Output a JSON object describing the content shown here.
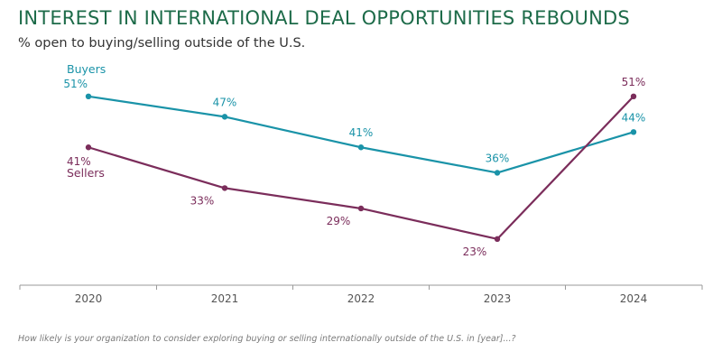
{
  "title": "INTEREST IN INTERNATIONAL DEAL OPPORTUNITIES REBOUNDS",
  "subtitle": "% open to buying/selling outside of the U.S.",
  "footnote": "How likely is your organization to consider exploring buying or selling internationally outside of the U.S. in [year]...?",
  "colors": {
    "buyers": "#1a93a8",
    "sellers": "#7b2d5b",
    "title": "#1d6b49",
    "axis": "#9a9a9a",
    "label": "#555555"
  },
  "chart_data": {
    "type": "line",
    "categories": [
      "2020",
      "2021",
      "2022",
      "2023",
      "2024"
    ],
    "ylim": [
      15,
      60
    ],
    "unit": "%",
    "grid": false,
    "series": [
      {
        "name": "Buyers",
        "key": "buyers",
        "values": [
          51,
          47,
          41,
          36,
          44
        ],
        "labels": [
          "51%",
          "47%",
          "41%",
          "36%",
          "44%"
        ]
      },
      {
        "name": "Sellers",
        "key": "sellers",
        "values": [
          41,
          33,
          29,
          23,
          51
        ],
        "labels": [
          "41%",
          "33%",
          "29%",
          "23%",
          "51%"
        ]
      }
    ]
  }
}
